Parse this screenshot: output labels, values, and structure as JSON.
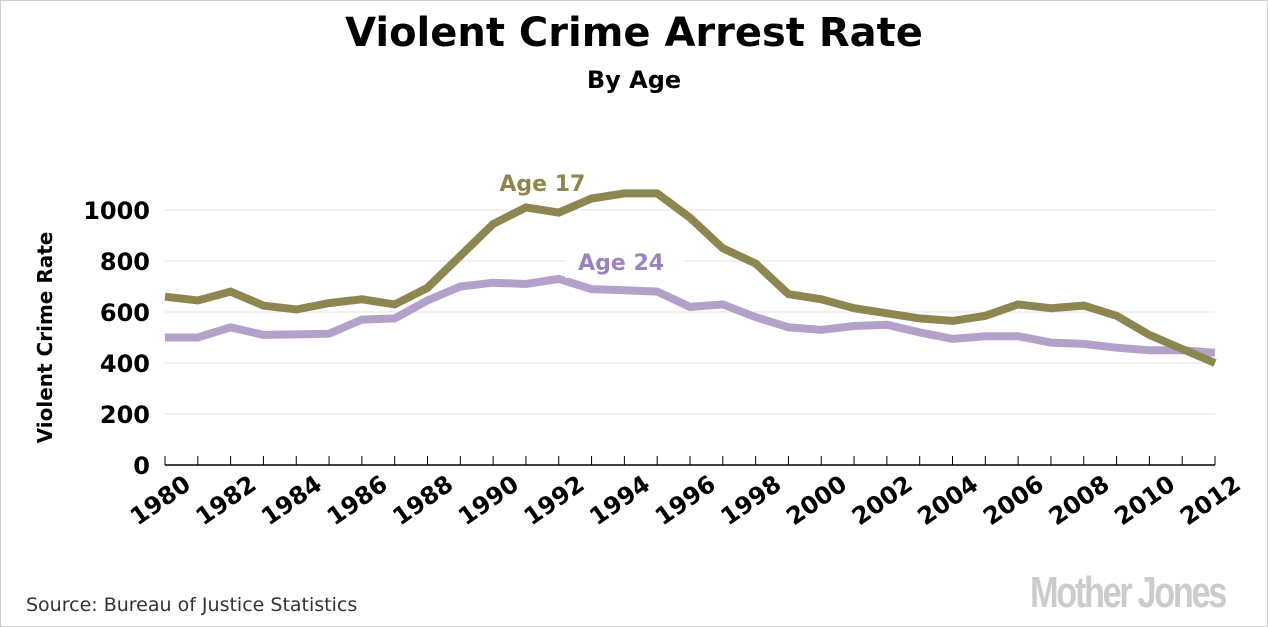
{
  "header": {
    "title": "Violent Crime Arrest Rate",
    "subtitle": "By Age"
  },
  "footer": {
    "source": "Source: Bureau of Justice Statistics",
    "logo": "Mother Jones"
  },
  "colors": {
    "age17": "#8e8650",
    "age24": "#b3a1c9",
    "age24_label": "#9b84bd",
    "grid": "#e3e3e3",
    "axis": "#000000"
  },
  "chart_data": {
    "type": "line",
    "title": "Violent Crime Arrest Rate",
    "subtitle": "By Age",
    "xlabel": "",
    "ylabel": "Violent Crime Rate",
    "xlim": [
      1980,
      2012
    ],
    "ylim": [
      0,
      1000
    ],
    "yticks": [
      0,
      200,
      400,
      600,
      800,
      1000
    ],
    "xticks": [
      1980,
      1982,
      1984,
      1986,
      1988,
      1990,
      1992,
      1994,
      1996,
      1998,
      2000,
      2002,
      2004,
      2006,
      2008,
      2010,
      2012
    ],
    "grid": true,
    "legend": "inline labels",
    "x": [
      1980,
      1981,
      1982,
      1983,
      1984,
      1985,
      1986,
      1987,
      1988,
      1989,
      1990,
      1991,
      1992,
      1993,
      1994,
      1995,
      1996,
      1997,
      1998,
      1999,
      2000,
      2001,
      2002,
      2003,
      2004,
      2005,
      2006,
      2007,
      2008,
      2009,
      2010,
      2011,
      2012
    ],
    "series": [
      {
        "name": "Age 17",
        "label": "Age 17",
        "values": [
          660,
          645,
          680,
          625,
          610,
          635,
          650,
          630,
          695,
          820,
          945,
          1010,
          990,
          1045,
          1065,
          1065,
          970,
          850,
          790,
          670,
          650,
          615,
          595,
          575,
          565,
          585,
          630,
          615,
          625,
          585,
          510,
          455,
          400
        ]
      },
      {
        "name": "Age 24",
        "label": "Age 24",
        "values": [
          500,
          500,
          540,
          510,
          512,
          515,
          570,
          575,
          645,
          700,
          715,
          710,
          730,
          690,
          685,
          680,
          620,
          630,
          580,
          540,
          530,
          545,
          550,
          520,
          495,
          505,
          505,
          480,
          475,
          460,
          450,
          450,
          440
        ]
      }
    ]
  }
}
